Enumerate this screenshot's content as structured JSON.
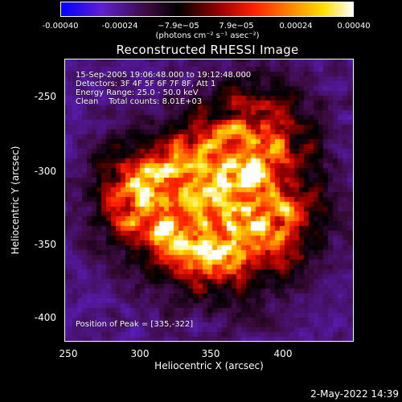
{
  "colorbar": {
    "ticks": [
      "-0.00040",
      "-0.00024",
      "−7.9e−05",
      "7.9e−05",
      "0.00024",
      "0.00040"
    ],
    "unit": "(photons cm⁻² s⁻¹ asec⁻²)",
    "colors": [
      "#0000ff",
      "#6020d0",
      "#3a0a3a",
      "#000000",
      "#a00000",
      "#ff2000",
      "#ff8000",
      "#ffe000",
      "#ffffff"
    ]
  },
  "title": "Reconstructed RHESSI Image",
  "info": {
    "time": "15-Sep-2005 19:06:48.000 to 19:12:48.000",
    "detectors": "Detectors: 3F 4F 5F 6F 7F 8F, Att 1",
    "energy": "Energy Range: 25.0 - 50.0 keV",
    "clean": "Clean    Total counts: 8.01E+03",
    "peak": "Position of Peak = [335,-322]"
  },
  "axes": {
    "xlabel": "Heliocentric X (arcsec)",
    "ylabel": "Heliocentric Y (arcsec)",
    "xticks": [
      "250",
      "300",
      "350",
      "400"
    ],
    "yticks": [
      "-250",
      "-300",
      "-350",
      "-400"
    ],
    "xlim": [
      248,
      440
    ],
    "ylim": [
      -414,
      -227
    ]
  },
  "peak_position": [
    335,
    -322
  ],
  "footer": {
    "date": "2-May-2022 14:39"
  }
}
